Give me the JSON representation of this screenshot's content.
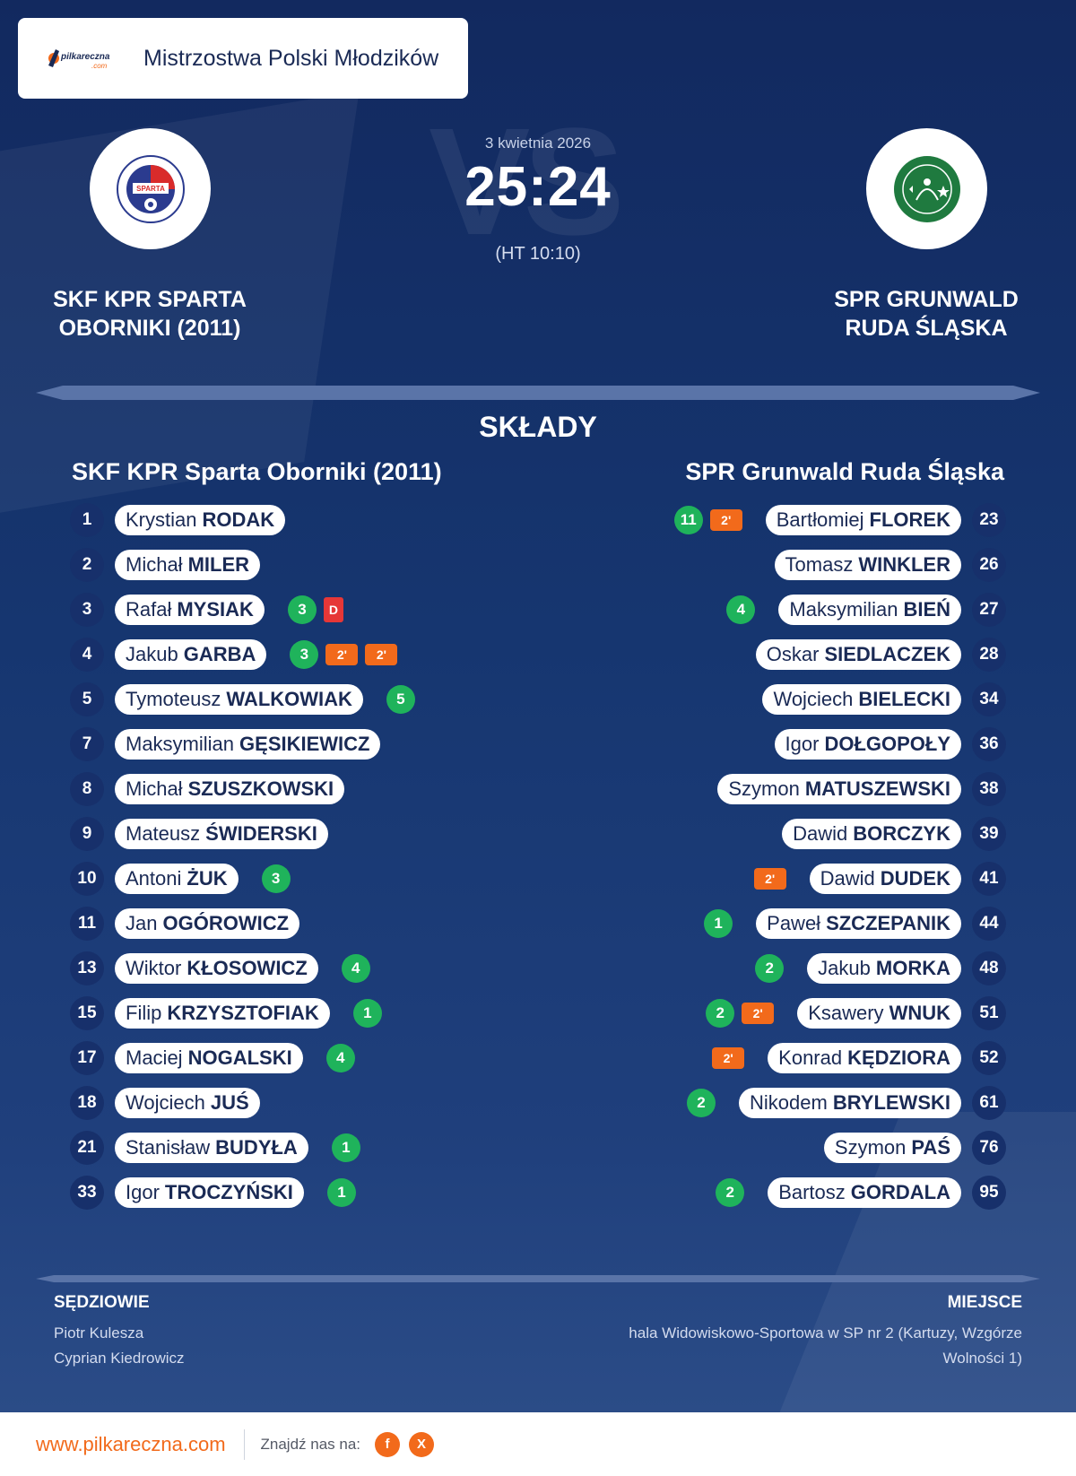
{
  "league": {
    "name": "Mistrzostwa Polski Młodzików",
    "brand": "pilkareczna",
    "brand_suffix": ".com"
  },
  "match": {
    "date": "3 kwietnia 2026",
    "score": "25:24",
    "halftime": "(HT 10:10)",
    "watermark": "VS"
  },
  "home": {
    "name_line1": "SKF KPR SPARTA",
    "name_line2": "OBORNIKI (2011)",
    "roster_title": "SKF KPR Sparta Oborniki (2011)",
    "logo_text": "SPARTA",
    "logo_ring": "SKF KPR OBORNIKI"
  },
  "away": {
    "name_line1": "SPR GRUNWALD",
    "name_line2": "RUDA ŚLĄSKA",
    "roster_title": "SPR Grunwald Ruda Śląska",
    "logo_ring": "SPR GRUNWALD RUDA ŚLĄSKA"
  },
  "section_title": "SKŁADY",
  "home_players": [
    {
      "num": "1",
      "first": "Krystian",
      "last": "RODAK",
      "goals": "",
      "susp": [],
      "disq": ""
    },
    {
      "num": "2",
      "first": "Michał",
      "last": "MILER",
      "goals": "",
      "susp": [],
      "disq": ""
    },
    {
      "num": "3",
      "first": "Rafał",
      "last": "MYSIAK",
      "goals": "3",
      "susp": [],
      "disq": "D"
    },
    {
      "num": "4",
      "first": "Jakub",
      "last": "GARBA",
      "goals": "3",
      "susp": [
        "2'",
        "2'"
      ],
      "disq": ""
    },
    {
      "num": "5",
      "first": "Tymoteusz",
      "last": "WALKOWIAK",
      "goals": "5",
      "susp": [],
      "disq": ""
    },
    {
      "num": "7",
      "first": "Maksymilian",
      "last": "GĘSIKIEWICZ",
      "goals": "",
      "susp": [],
      "disq": ""
    },
    {
      "num": "8",
      "first": "Michał",
      "last": "SZUSZKOWSKI",
      "goals": "",
      "susp": [],
      "disq": ""
    },
    {
      "num": "9",
      "first": "Mateusz",
      "last": "ŚWIDERSKI",
      "goals": "",
      "susp": [],
      "disq": ""
    },
    {
      "num": "10",
      "first": "Antoni",
      "last": "ŻUK",
      "goals": "3",
      "susp": [],
      "disq": ""
    },
    {
      "num": "11",
      "first": "Jan",
      "last": "OGÓROWICZ",
      "goals": "",
      "susp": [],
      "disq": ""
    },
    {
      "num": "13",
      "first": "Wiktor",
      "last": "KŁOSOWICZ",
      "goals": "4",
      "susp": [],
      "disq": ""
    },
    {
      "num": "15",
      "first": "Filip",
      "last": "KRZYSZTOFIAK",
      "goals": "1",
      "susp": [],
      "disq": ""
    },
    {
      "num": "17",
      "first": "Maciej",
      "last": "NOGALSKI",
      "goals": "4",
      "susp": [],
      "disq": ""
    },
    {
      "num": "18",
      "first": "Wojciech",
      "last": "JUŚ",
      "goals": "",
      "susp": [],
      "disq": ""
    },
    {
      "num": "21",
      "first": "Stanisław",
      "last": "BUDYŁA",
      "goals": "1",
      "susp": [],
      "disq": ""
    },
    {
      "num": "33",
      "first": "Igor",
      "last": "TROCZYŃSKI",
      "goals": "1",
      "susp": [],
      "disq": ""
    }
  ],
  "away_players": [
    {
      "num": "23",
      "first": "Bartłomiej",
      "last": "FLOREK",
      "goals": "11",
      "susp": [
        "2'"
      ]
    },
    {
      "num": "26",
      "first": "Tomasz",
      "last": "WINKLER",
      "goals": "",
      "susp": []
    },
    {
      "num": "27",
      "first": "Maksymilian",
      "last": "BIEŃ",
      "goals": "4",
      "susp": []
    },
    {
      "num": "28",
      "first": "Oskar",
      "last": "SIEDLACZEK",
      "goals": "",
      "susp": []
    },
    {
      "num": "34",
      "first": "Wojciech",
      "last": "BIELECKI",
      "goals": "",
      "susp": []
    },
    {
      "num": "36",
      "first": "Igor",
      "last": "DOŁGOPOŁY",
      "goals": "",
      "susp": []
    },
    {
      "num": "38",
      "first": "Szymon",
      "last": "MATUSZEWSKI",
      "goals": "",
      "susp": []
    },
    {
      "num": "39",
      "first": "Dawid",
      "last": "BORCZYK",
      "goals": "",
      "susp": []
    },
    {
      "num": "41",
      "first": "Dawid",
      "last": "DUDEK",
      "goals": "",
      "susp": [
        "2'"
      ]
    },
    {
      "num": "44",
      "first": "Paweł",
      "last": "SZCZEPANIK",
      "goals": "1",
      "susp": []
    },
    {
      "num": "48",
      "first": "Jakub",
      "last": "MORKA",
      "goals": "2",
      "susp": []
    },
    {
      "num": "51",
      "first": "Ksawery",
      "last": "WNUK",
      "goals": "2",
      "susp": [
        "2'"
      ]
    },
    {
      "num": "52",
      "first": "Konrad",
      "last": "KĘDZIORA",
      "goals": "",
      "susp": [
        "2'"
      ]
    },
    {
      "num": "61",
      "first": "Nikodem",
      "last": "BRYLEWSKI",
      "goals": "2",
      "susp": []
    },
    {
      "num": "76",
      "first": "Szymon",
      "last": "PAŚ",
      "goals": "",
      "susp": []
    },
    {
      "num": "95",
      "first": "Bartosz",
      "last": "GORDALA",
      "goals": "2",
      "susp": []
    }
  ],
  "officials": {
    "title": "SĘDZIOWIE",
    "names": [
      "Piotr Kulesza",
      "Cyprian Kiedrowicz"
    ]
  },
  "venue": {
    "title": "MIEJSCE",
    "line1": "hala Widowiskowo-Sportowa w SP nr 2 (Kartuzy, Wzgórze",
    "line2": "Wolności 1)"
  },
  "footer": {
    "url": "www.pilkareczna.com",
    "find_us": "Znajdź nas na:",
    "facebook": "f",
    "x": "X"
  },
  "colors": {
    "background": "#163670",
    "goal": "#1fb35b",
    "suspension": "#f26a1b",
    "disqualification": "#e63737",
    "accent": "#f26a1b"
  }
}
